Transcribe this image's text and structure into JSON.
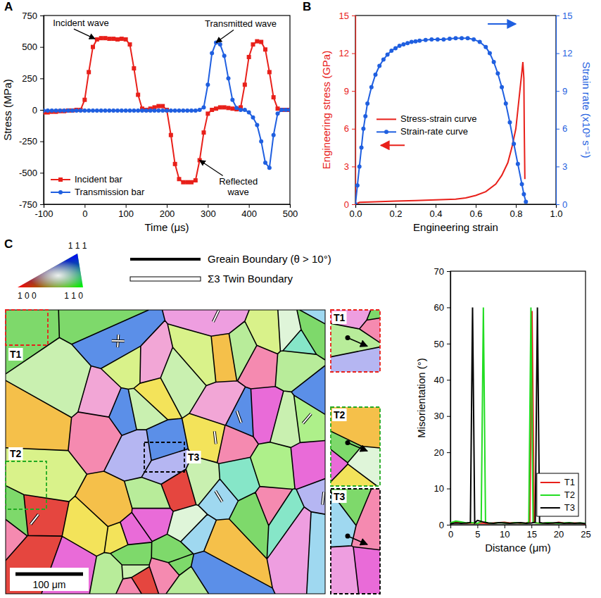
{
  "chart_data": [
    {
      "type": "line",
      "panel": "A",
      "x": [
        -100,
        -90,
        -80,
        -70,
        -60,
        -50,
        -40,
        -30,
        -20,
        -10,
        0,
        10,
        20,
        30,
        40,
        50,
        60,
        70,
        80,
        90,
        100,
        110,
        120,
        130,
        140,
        150,
        160,
        170,
        180,
        190,
        200,
        210,
        220,
        230,
        240,
        250,
        260,
        270,
        280,
        290,
        300,
        310,
        320,
        330,
        340,
        350,
        360,
        370,
        380,
        390,
        400,
        410,
        420,
        430,
        440,
        450,
        460,
        470,
        480,
        490,
        500
      ],
      "xlim": [
        -100,
        500
      ],
      "xticks": [
        -100,
        0,
        100,
        200,
        300,
        400,
        500
      ],
      "ylim": [
        -750,
        750
      ],
      "yticks": [
        -750,
        -500,
        -250,
        0,
        250,
        500,
        750
      ],
      "x_label": "Time (μs)",
      "y_label": "Stress (MPa)",
      "legend": "lower left",
      "series": [
        {
          "name": "Incident bar",
          "color": "#e8201a",
          "marker": "square",
          "values": [
            -20,
            -20,
            -15,
            -15,
            -10,
            -10,
            -5,
            -5,
            0,
            0,
            80,
            300,
            500,
            560,
            570,
            570,
            565,
            565,
            560,
            565,
            560,
            520,
            330,
            120,
            10,
            0,
            10,
            20,
            30,
            30,
            0,
            -200,
            -430,
            -550,
            -575,
            -575,
            -575,
            -560,
            -400,
            -180,
            -30,
            0,
            10,
            20,
            20,
            15,
            10,
            5,
            20,
            200,
            420,
            520,
            545,
            540,
            480,
            300,
            100,
            10,
            0,
            0,
            0
          ]
        },
        {
          "name": "Transmission bar",
          "color": "#1f5fe0",
          "marker": "circle",
          "values": [
            -5,
            -5,
            -5,
            -5,
            -5,
            -5,
            -5,
            -5,
            -5,
            -5,
            -5,
            -5,
            -5,
            -5,
            -5,
            -5,
            -5,
            -5,
            -5,
            -5,
            -5,
            -5,
            -5,
            -5,
            -5,
            -5,
            -5,
            -5,
            -5,
            -5,
            -5,
            -5,
            -5,
            -5,
            -5,
            -5,
            -5,
            -5,
            0,
            20,
            200,
            450,
            535,
            520,
            430,
            250,
            80,
            15,
            0,
            0,
            -20,
            -60,
            -120,
            -250,
            -420,
            -460,
            -200,
            -30,
            0,
            0,
            0
          ]
        }
      ],
      "annotations": [
        {
          "text": "Incident wave",
          "x": 25,
          "y": 565
        },
        {
          "text": "Transmitted wave",
          "x": 320,
          "y": 535
        },
        {
          "text": "Reflected wave",
          "x": 280,
          "y": -400
        }
      ]
    },
    {
      "type": "line",
      "panel": "B",
      "xlim": [
        0,
        1
      ],
      "xticks": [
        {
          "value": 0,
          "label": "0.0"
        },
        0.2,
        0.4,
        0.6,
        0.8,
        {
          "value": 1,
          "label": "1.0"
        }
      ],
      "ylim": [
        0,
        15
      ],
      "yticks": [
        0,
        3,
        6,
        9,
        12,
        15
      ],
      "y2lim": [
        0,
        15
      ],
      "y2ticks": [
        0,
        3,
        6,
        9,
        12,
        15
      ],
      "x_label": "Engineering strain",
      "y_label": "Engineering stress (GPa)",
      "y2_label": "Strain rate (x10³ s⁻¹)",
      "legend": "center left",
      "series": [
        {
          "name": "Stress-strain curve",
          "color": "#e8201a",
          "marker": "none",
          "x": [
            0,
            0.02,
            0.1,
            0.2,
            0.3,
            0.4,
            0.5,
            0.55,
            0.6,
            0.65,
            0.7,
            0.73,
            0.76,
            0.78,
            0.8,
            0.81,
            0.82,
            0.83,
            0.835,
            0.84,
            0.842,
            0.845
          ],
          "values": [
            0,
            0.15,
            0.2,
            0.25,
            0.3,
            0.35,
            0.4,
            0.5,
            0.7,
            1.0,
            1.6,
            2.3,
            3.3,
            4.5,
            6.0,
            7.5,
            9.0,
            10.5,
            11.3,
            10.0,
            6.0,
            2.0
          ]
        },
        {
          "name": "Strain-rate curve",
          "color": "#1f5fe0",
          "marker": "circle",
          "axis": "y2",
          "x": [
            0,
            0.01,
            0.02,
            0.03,
            0.04,
            0.05,
            0.06,
            0.08,
            0.1,
            0.12,
            0.14,
            0.16,
            0.18,
            0.2,
            0.22,
            0.24,
            0.26,
            0.28,
            0.3,
            0.32,
            0.35,
            0.38,
            0.41,
            0.44,
            0.47,
            0.5,
            0.53,
            0.56,
            0.59,
            0.62,
            0.65,
            0.67,
            0.69,
            0.71,
            0.73,
            0.75,
            0.77,
            0.79,
            0.81,
            0.83,
            0.84,
            0.85
          ],
          "values": [
            0,
            1.5,
            3,
            4.5,
            6,
            7,
            8,
            9.3,
            10.3,
            11,
            11.5,
            11.9,
            12.2,
            12.4,
            12.6,
            12.7,
            12.8,
            12.9,
            12.95,
            13,
            13.05,
            13.1,
            13.1,
            13.1,
            13.15,
            13.2,
            13.2,
            13.2,
            13.1,
            12.9,
            12.5,
            12.0,
            11.3,
            10.4,
            9.3,
            8.0,
            6.5,
            4.8,
            3.2,
            1.6,
            0.8,
            0.2
          ]
        }
      ]
    },
    {
      "type": "line",
      "xlim": [
        0,
        25
      ],
      "xticks": [
        0,
        5,
        10,
        15,
        20,
        25
      ],
      "ylim": [
        0,
        70
      ],
      "yticks": [
        0,
        10,
        20,
        30,
        40,
        50,
        60,
        70
      ],
      "x_label": "Distance (μm)",
      "y_label": "Misorientation (°)",
      "legend": "lower right",
      "series": [
        {
          "name": "T1",
          "color": "#e8201a",
          "marker": "none",
          "x": [
            0,
            1,
            2,
            3,
            4,
            5,
            6,
            7,
            8,
            9,
            10,
            11,
            12,
            13,
            14,
            14.7,
            15.1,
            15.5,
            16,
            17,
            18,
            19,
            20,
            21,
            22,
            23,
            24,
            25
          ],
          "values": [
            0.5,
            0.8,
            0.6,
            0.4,
            0.5,
            0.4,
            0.5,
            0.3,
            0.5,
            0.6,
            0.7,
            0.5,
            0.6,
            0.4,
            0.5,
            0.8,
            59,
            0.6,
            0.5,
            0.4,
            0.5,
            0.4,
            0.7,
            0.5,
            0.4,
            0.5,
            0.4,
            0.3
          ]
        },
        {
          "name": "T2",
          "color": "#22dd22",
          "marker": "none",
          "x": [
            0,
            1,
            2,
            3,
            4,
            5,
            5.7,
            6.1,
            6.5,
            7,
            8,
            9,
            10,
            11,
            12,
            13,
            14,
            14.5,
            14.9,
            15.3,
            16,
            17,
            18,
            19,
            20,
            21,
            22,
            23,
            24,
            25
          ],
          "values": [
            0.5,
            1,
            0.8,
            0.5,
            0.6,
            0.4,
            0.8,
            60,
            0.7,
            0.5,
            0.4,
            0.6,
            0.5,
            0.4,
            0.6,
            0.5,
            0.4,
            0.7,
            60,
            0.6,
            0.5,
            0.4,
            0.6,
            0.5,
            0.4,
            0.5,
            0.6,
            0.4,
            0.5,
            0.4
          ]
        },
        {
          "name": "T3",
          "color": "#000000",
          "marker": "none",
          "x": [
            0,
            1,
            2,
            3,
            3.7,
            4.1,
            4.5,
            5,
            6,
            7,
            8,
            9,
            10,
            11,
            12,
            13,
            14,
            15,
            15.7,
            16.1,
            16.5,
            17,
            18,
            19,
            20,
            21,
            22,
            23,
            24,
            25
          ],
          "values": [
            0.3,
            0.5,
            0.4,
            0.5,
            0.6,
            60,
            0.5,
            1.2,
            0.8,
            0.5,
            0.4,
            0.6,
            0.5,
            0.4,
            0.5,
            0.6,
            0.4,
            0.5,
            0.7,
            60,
            0.6,
            0.5,
            0.4,
            0.5,
            0.6,
            0.4,
            0.5,
            0.4,
            0.5,
            0.3
          ]
        }
      ]
    }
  ],
  "map": {
    "panel": "C",
    "ipf_labels": [
      "1 1 1",
      "1 0 0",
      "1 1 0"
    ],
    "boundary_legend": [
      "Greain Boundary (θ > 10°)",
      "Σ3 Twin Boundary"
    ],
    "scale_bar": "100 μm",
    "insets": [
      "T1",
      "T2",
      "T3"
    ]
  }
}
